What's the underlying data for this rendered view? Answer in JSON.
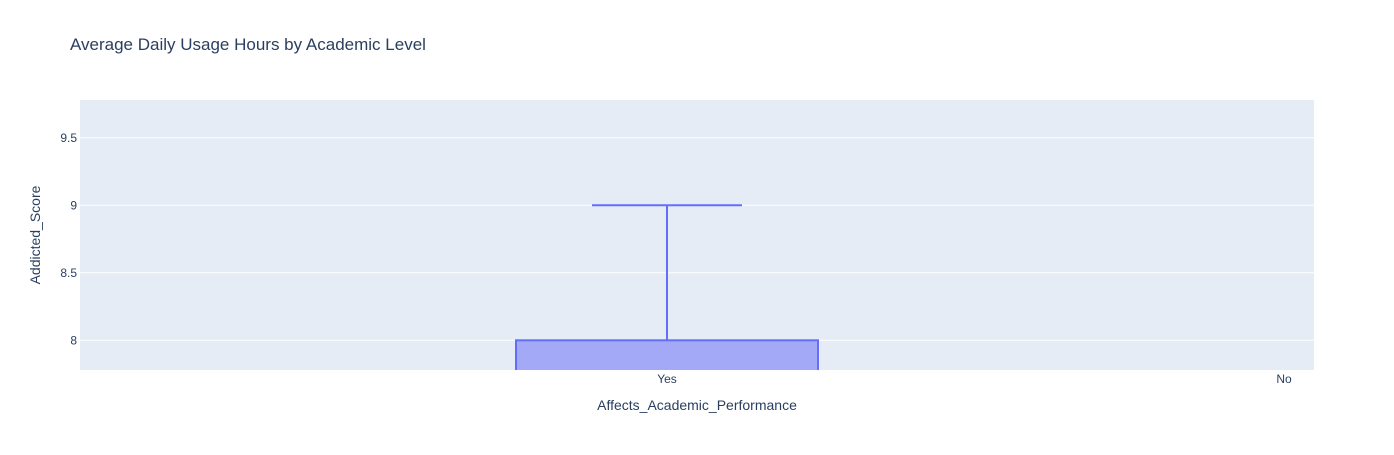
{
  "chart_data": {
    "type": "box",
    "title": "Average Daily Usage Hours by Academic Level",
    "xlabel": "Affects_Academic_Performance",
    "ylabel": "Addicted_Score",
    "categories": [
      "Yes",
      "No"
    ],
    "ylim": [
      7.78,
      9.78
    ],
    "yticks": [
      8,
      8.5,
      9,
      9.5
    ],
    "ytick_labels": [
      "8",
      "8.5",
      "9",
      "9.5"
    ],
    "grid": true,
    "legend": "none",
    "series": [
      {
        "category": "Yes",
        "q3": 8,
        "upper_whisker": 9
      }
    ],
    "colors": {
      "plot_bg": "#e5ecf6",
      "box_fill": "#a3a9f7",
      "box_line": "#636efa",
      "gridline": "#ffffff",
      "text": "#2a3f5f"
    }
  }
}
